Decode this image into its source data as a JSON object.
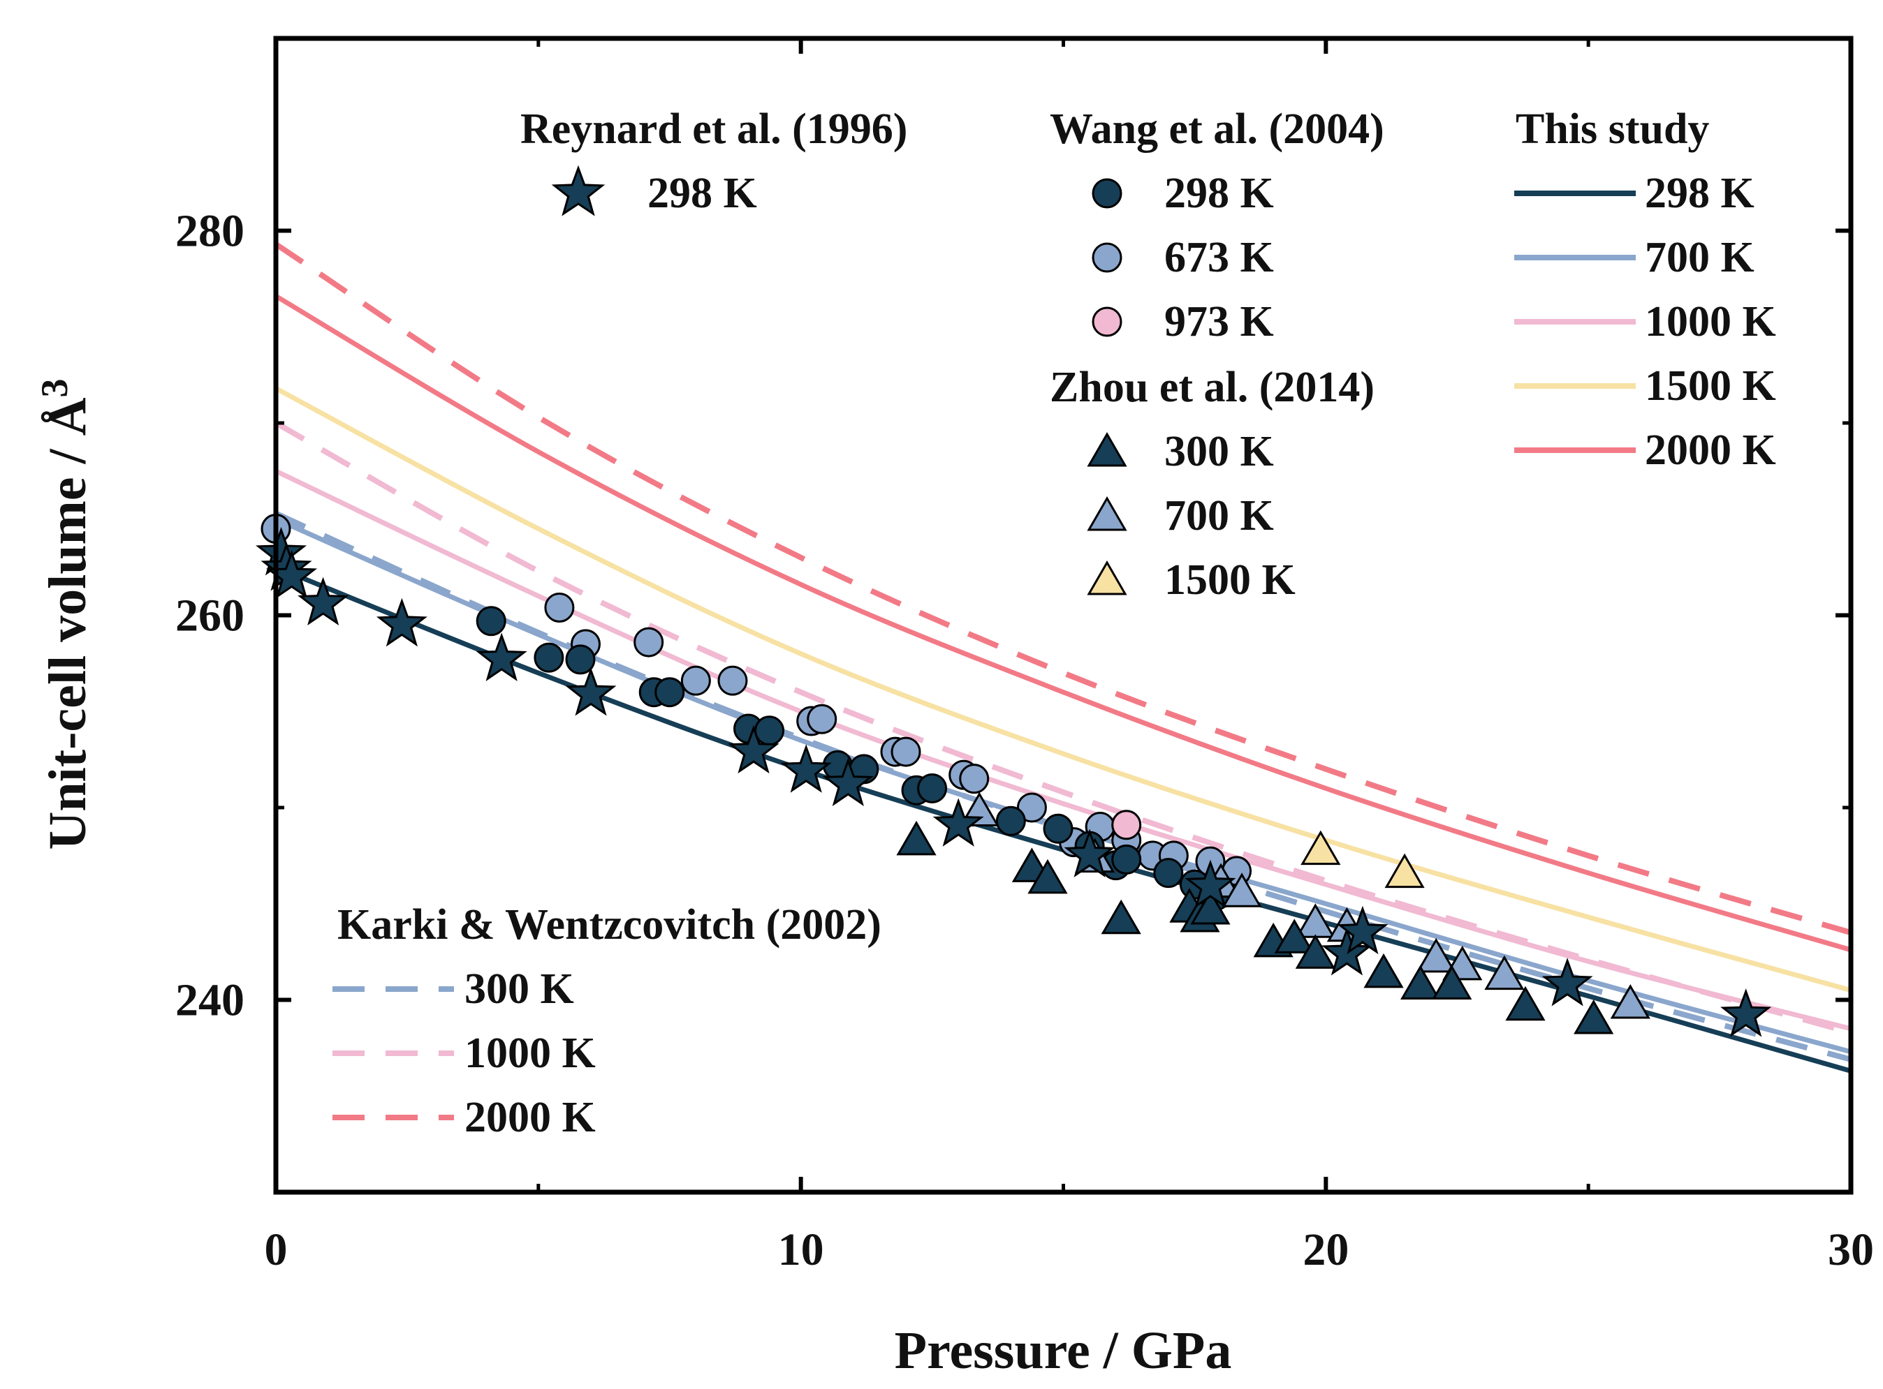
{
  "chart_data": {
    "type": "line",
    "title": "",
    "xlabel": "Pressure / GPa",
    "ylabel_main": "Unit-cell volume / Å",
    "ylabel_sup": "3",
    "xlim": [
      0,
      30
    ],
    "ylim": [
      230,
      290
    ],
    "xticks": [
      0,
      10,
      20,
      30
    ],
    "xtick_labels": [
      "0",
      "10",
      "20",
      "30"
    ],
    "yticks": [
      240,
      260,
      280
    ],
    "ytick_labels": [
      "240",
      "260",
      "280"
    ],
    "grid": false,
    "colors": {
      "navy": "#163e56",
      "blue": "#8aa6cc",
      "pink": "#f1b9d2",
      "yellow": "#f7e1a3",
      "red": "#f27a86"
    },
    "legend_groups": {
      "reynard": {
        "title": "Reynard et al. (1996)",
        "items": [
          {
            "label": "298 K",
            "marker": "star",
            "color": "#163e56"
          }
        ]
      },
      "wang": {
        "title": "Wang et al. (2004)",
        "items": [
          {
            "label": "298 K",
            "marker": "circle",
            "color": "#163e56"
          },
          {
            "label": "673 K",
            "marker": "circle",
            "color": "#8aa6cc"
          },
          {
            "label": "973 K",
            "marker": "circle",
            "color": "#f1b9d2"
          }
        ]
      },
      "zhou": {
        "title": "Zhou et al. (2014)",
        "items": [
          {
            "label": "300 K",
            "marker": "triangle",
            "color": "#163e56"
          },
          {
            "label": "700 K",
            "marker": "triangle",
            "color": "#8aa6cc"
          },
          {
            "label": "1500 K",
            "marker": "triangle",
            "color": "#f7e1a3"
          }
        ]
      },
      "this_study": {
        "title": "This study",
        "items": [
          {
            "label": "298 K",
            "line": "solid",
            "color": "#163e56"
          },
          {
            "label": "700 K",
            "line": "solid",
            "color": "#8aa6cc"
          },
          {
            "label": "1000 K",
            "line": "solid",
            "color": "#f1b9d2"
          },
          {
            "label": "1500 K",
            "line": "solid",
            "color": "#f7e1a3"
          },
          {
            "label": "2000 K",
            "line": "solid",
            "color": "#f27a86"
          }
        ]
      },
      "karki": {
        "title": "Karki & Wentzcovitch (2002)",
        "items": [
          {
            "label": "300 K",
            "line": "dashed",
            "color": "#8aa6cc"
          },
          {
            "label": "1000 K",
            "line": "dashed",
            "color": "#f1b9d2"
          },
          {
            "label": "2000 K",
            "line": "dashed",
            "color": "#f27a86"
          }
        ]
      }
    },
    "series": [
      {
        "name": "This study 298 K",
        "style": "solid",
        "color": "#163e56",
        "x": [
          0,
          5,
          10,
          15,
          20,
          25,
          30
        ],
        "y": [
          262.5,
          257.0,
          252.0,
          247.8,
          244.0,
          240.2,
          236.3
        ]
      },
      {
        "name": "This study 700 K",
        "style": "solid",
        "color": "#8aa6cc",
        "x": [
          0,
          5,
          10,
          15,
          20,
          25,
          30
        ],
        "y": [
          265.0,
          259.0,
          253.5,
          249.0,
          245.0,
          241.0,
          237.3
        ]
      },
      {
        "name": "This study 1000 K",
        "style": "solid",
        "color": "#f1b9d2",
        "x": [
          0,
          5,
          10,
          15,
          20,
          25,
          30
        ],
        "y": [
          267.5,
          261.0,
          255.0,
          250.2,
          246.0,
          242.0,
          238.5
        ]
      },
      {
        "name": "This study 1500 K",
        "style": "solid",
        "color": "#f7e1a3",
        "x": [
          0,
          5,
          10,
          15,
          20,
          25,
          30
        ],
        "y": [
          271.8,
          264.5,
          258.0,
          252.8,
          248.3,
          244.3,
          240.5
        ]
      },
      {
        "name": "This study 2000 K",
        "style": "solid",
        "color": "#f27a86",
        "x": [
          0,
          5,
          10,
          15,
          20,
          25,
          30
        ],
        "y": [
          276.6,
          268.5,
          261.6,
          256.0,
          251.0,
          246.6,
          242.6
        ]
      },
      {
        "name": "Karki 300 K",
        "style": "dashed",
        "color": "#8aa6cc",
        "x": [
          0,
          5,
          10,
          15,
          20,
          25,
          30
        ],
        "y": [
          265.3,
          259.1,
          253.6,
          248.9,
          244.6,
          240.6,
          236.9
        ]
      },
      {
        "name": "Karki 1000 K",
        "style": "dashed",
        "color": "#f1b9d2",
        "x": [
          0,
          5,
          10,
          15,
          20,
          25,
          30
        ],
        "y": [
          270.0,
          262.3,
          256.0,
          250.8,
          246.2,
          242.1,
          238.3
        ]
      },
      {
        "name": "Karki 2000 K",
        "style": "dashed",
        "color": "#f27a86",
        "x": [
          0,
          5,
          10,
          15,
          20,
          25,
          30
        ],
        "y": [
          279.3,
          270.3,
          263.0,
          257.0,
          252.0,
          247.5,
          243.5
        ]
      },
      {
        "name": "Reynard et al. (1996) 298 K",
        "marker": "star",
        "color": "#163e56",
        "x": [
          0.1,
          0.2,
          0.3,
          0.9,
          2.4,
          4.3,
          6.0,
          9.1,
          10.1,
          10.9,
          13.0,
          15.5,
          17.8,
          20.4,
          20.7,
          24.6,
          28.0
        ],
        "y": [
          263.2,
          262.4,
          262.0,
          260.6,
          259.5,
          257.7,
          255.9,
          252.9,
          251.9,
          251.2,
          249.1,
          247.5,
          245.9,
          242.4,
          243.5,
          240.8,
          239.2
        ]
      },
      {
        "name": "Wang et al. (2004) 298 K",
        "marker": "circle",
        "color": "#163e56",
        "x": [
          4.1,
          5.2,
          5.8,
          7.2,
          7.5,
          9.0,
          9.4,
          10.7,
          11.2,
          12.2,
          12.5,
          14.0,
          14.9,
          15.5,
          16.0,
          16.2,
          17.0,
          17.5,
          17.9
        ],
        "y": [
          259.7,
          257.8,
          257.7,
          256.0,
          256.0,
          254.1,
          254.0,
          252.2,
          252.0,
          250.9,
          251.0,
          249.3,
          248.9,
          248.0,
          247.0,
          247.3,
          246.6,
          246.0,
          245.4
        ]
      },
      {
        "name": "Wang et al. (2004) 673 K",
        "marker": "circle",
        "color": "#8aa6cc",
        "x": [
          0.0,
          5.4,
          5.9,
          7.1,
          8.0,
          8.7,
          10.2,
          10.4,
          11.8,
          12.0,
          13.1,
          13.3,
          14.4,
          15.2,
          15.7,
          16.2,
          16.7,
          17.1,
          17.8,
          18.3
        ],
        "y": [
          264.5,
          260.4,
          258.5,
          258.6,
          256.6,
          256.6,
          254.5,
          254.6,
          252.9,
          252.9,
          251.7,
          251.5,
          250.0,
          248.2,
          249.0,
          248.3,
          247.5,
          247.5,
          247.2,
          246.7
        ]
      },
      {
        "name": "Wang et al. (2004) 973 K",
        "marker": "circle",
        "color": "#f1b9d2",
        "x": [
          16.2
        ],
        "y": [
          249.1
        ]
      },
      {
        "name": "Zhou et al. (2014) 300 K",
        "marker": "triangle",
        "color": "#163e56",
        "x": [
          12.2,
          14.4,
          14.7,
          16.1,
          17.4,
          17.6,
          17.8,
          19.0,
          19.4,
          19.8,
          21.1,
          21.8,
          22.4,
          23.8,
          25.1
        ],
        "y": [
          248.3,
          246.9,
          246.3,
          244.2,
          244.8,
          244.3,
          244.7,
          243.0,
          243.2,
          242.4,
          241.4,
          240.8,
          240.8,
          239.7,
          239.0
        ]
      },
      {
        "name": "Zhou et al. (2014) 700 K",
        "marker": "triangle",
        "color": "#8aa6cc",
        "x": [
          13.4,
          15.6,
          18.0,
          18.4,
          19.8,
          20.4,
          22.1,
          22.6,
          23.4,
          25.8
        ],
        "y": [
          249.8,
          247.4,
          246.1,
          245.6,
          244.0,
          243.8,
          242.2,
          241.8,
          241.3,
          239.8
        ]
      },
      {
        "name": "Zhou et al. (2014) 1500 K",
        "marker": "triangle",
        "color": "#f7e1a3",
        "x": [
          19.9,
          21.5
        ],
        "y": [
          247.8,
          246.6
        ]
      }
    ]
  }
}
